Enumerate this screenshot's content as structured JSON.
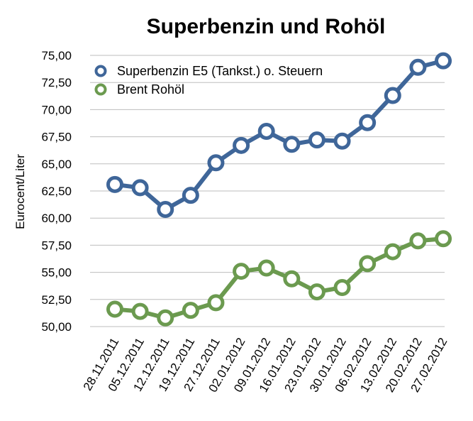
{
  "chart_data": {
    "type": "line",
    "title": "Superbenzin und Rohöl",
    "ylabel": "Eurocent/Liter",
    "xlabel": "",
    "ylim": [
      50,
      75
    ],
    "ytick_labels": [
      "50,00",
      "52,50",
      "55,00",
      "57,50",
      "60,00",
      "62,50",
      "65,00",
      "67,50",
      "70,00",
      "72,50",
      "75,00"
    ],
    "categories": [
      "28.11.2011",
      "05.12.2011",
      "12.12.2011",
      "19.12.2011",
      "27.12.2011",
      "02.01.2012",
      "09.01.2012",
      "16.01.2012",
      "23.01.2012",
      "30.01.2012",
      "06.02.2012",
      "13.02.2012",
      "20.02.2012",
      "27.02.2012"
    ],
    "grid": true,
    "legend_position": "top-left",
    "series": [
      {
        "name": "Superbenzin E5 (Tankst.) o. Steuern",
        "color": "#3f6699",
        "values": [
          63.1,
          62.8,
          60.8,
          62.1,
          65.1,
          66.7,
          68.0,
          66.8,
          67.2,
          67.1,
          68.8,
          71.3,
          73.9,
          74.5
        ]
      },
      {
        "name": "Brent Rohöl",
        "color": "#6b9a4f",
        "values": [
          51.6,
          51.4,
          50.8,
          51.5,
          52.2,
          55.1,
          55.4,
          54.4,
          53.2,
          53.6,
          55.8,
          56.9,
          57.9,
          58.1
        ]
      }
    ]
  }
}
